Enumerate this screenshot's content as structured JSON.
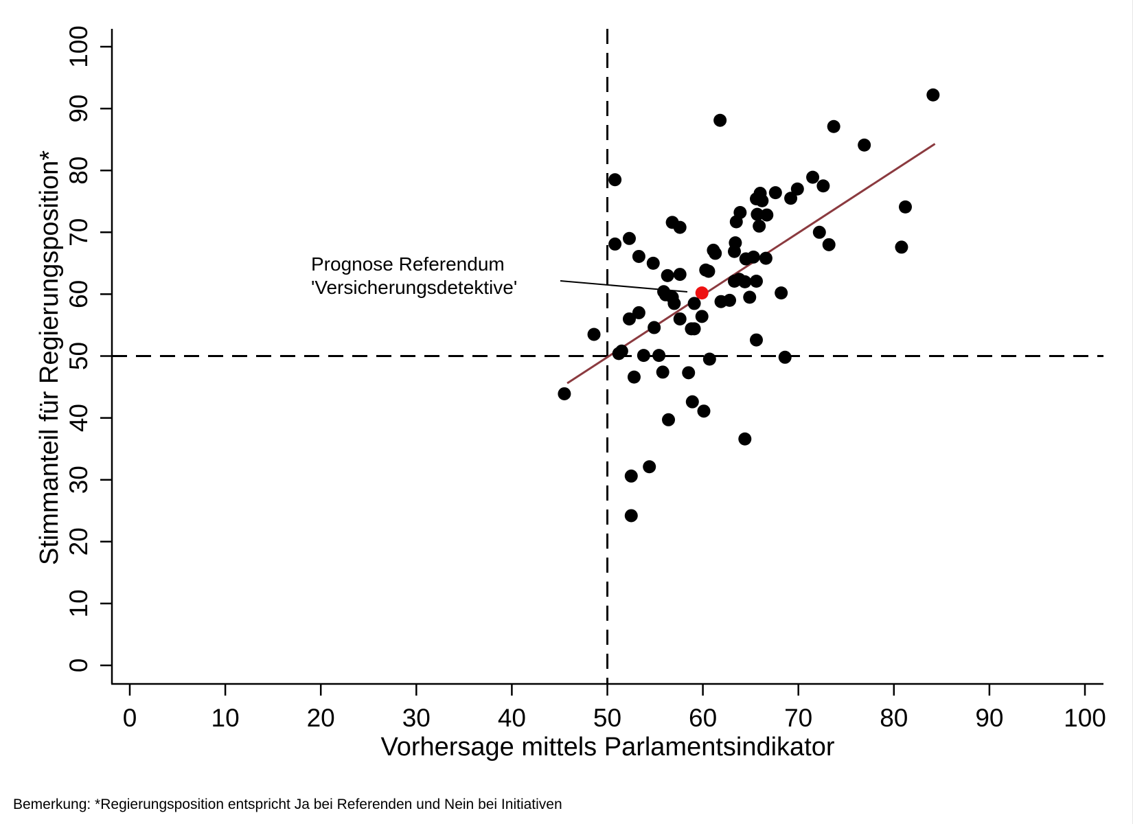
{
  "chart_data": {
    "type": "scatter",
    "xlabel": "Vorhersage mittels Parlamentsindikator",
    "ylabel": "Stimmanteil für Regierungsposition*",
    "xlim": [
      0,
      100
    ],
    "ylim": [
      0,
      100
    ],
    "xticks": [
      "0",
      "10",
      "20",
      "30",
      "40",
      "50",
      "60",
      "70",
      "80",
      "90",
      "100"
    ],
    "yticks": [
      "0",
      "10",
      "20",
      "30",
      "40",
      "50",
      "60",
      "70",
      "80",
      "90",
      "100"
    ],
    "grid": false,
    "reference_lines": {
      "x": 50,
      "y": 50,
      "style": "dashed"
    },
    "fit_line": {
      "x": [
        45.8,
        84.3
      ],
      "y": [
        45.6,
        84.3
      ],
      "color": "#8b3a3f"
    },
    "highlight": {
      "x": 59.9,
      "y": 60.2,
      "color": "#ee1111",
      "label_line1": "Prognose Referendum",
      "label_line2": "'Versicherungsdetektive'"
    },
    "point_color": "#000000",
    "points": [
      [
        45.5,
        43.9
      ],
      [
        48.6,
        53.5
      ],
      [
        50.8,
        78.5
      ],
      [
        50.8,
        68.1
      ],
      [
        51.2,
        50.4
      ],
      [
        51.5,
        50.8
      ],
      [
        52.3,
        69.0
      ],
      [
        52.3,
        56.0
      ],
      [
        52.8,
        46.6
      ],
      [
        52.5,
        30.6
      ],
      [
        52.5,
        24.2
      ],
      [
        53.3,
        66.1
      ],
      [
        53.3,
        57.0
      ],
      [
        53.8,
        50.1
      ],
      [
        54.4,
        32.1
      ],
      [
        54.8,
        65.0
      ],
      [
        54.9,
        54.6
      ],
      [
        55.4,
        50.1
      ],
      [
        55.8,
        47.4
      ],
      [
        55.9,
        60.4
      ],
      [
        56.1,
        59.9
      ],
      [
        56.3,
        63.0
      ],
      [
        56.4,
        39.7
      ],
      [
        56.8,
        71.6
      ],
      [
        56.8,
        59.5
      ],
      [
        57.0,
        58.5
      ],
      [
        57.6,
        70.8
      ],
      [
        57.6,
        63.2
      ],
      [
        57.6,
        56.0
      ],
      [
        58.5,
        47.3
      ],
      [
        58.8,
        54.4
      ],
      [
        59.1,
        54.4
      ],
      [
        58.9,
        42.6
      ],
      [
        59.1,
        58.5
      ],
      [
        59.9,
        56.4
      ],
      [
        60.1,
        41.1
      ],
      [
        60.3,
        63.9
      ],
      [
        60.6,
        63.7
      ],
      [
        60.7,
        49.5
      ],
      [
        61.1,
        67.1
      ],
      [
        61.3,
        66.6
      ],
      [
        61.8,
        88.1
      ],
      [
        61.9,
        58.8
      ],
      [
        62.8,
        59.0
      ],
      [
        63.3,
        66.9
      ],
      [
        63.4,
        68.3
      ],
      [
        63.5,
        71.7
      ],
      [
        63.3,
        62.1
      ],
      [
        63.8,
        62.4
      ],
      [
        63.9,
        73.2
      ],
      [
        64.4,
        62.0
      ],
      [
        64.4,
        36.6
      ],
      [
        64.5,
        65.7
      ],
      [
        64.9,
        59.5
      ],
      [
        65.3,
        66.0
      ],
      [
        65.6,
        62.1
      ],
      [
        65.6,
        52.6
      ],
      [
        65.6,
        75.4
      ],
      [
        65.7,
        72.9
      ],
      [
        65.9,
        71.0
      ],
      [
        66.0,
        76.3
      ],
      [
        66.2,
        75.1
      ],
      [
        66.7,
        72.8
      ],
      [
        66.6,
        65.8
      ],
      [
        67.6,
        76.4
      ],
      [
        68.2,
        60.2
      ],
      [
        68.6,
        49.8
      ],
      [
        69.2,
        75.5
      ],
      [
        69.9,
        77.0
      ],
      [
        71.5,
        78.9
      ],
      [
        72.2,
        70.0
      ],
      [
        72.6,
        77.5
      ],
      [
        73.2,
        68.0
      ],
      [
        73.7,
        87.1
      ],
      [
        76.9,
        84.1
      ],
      [
        80.8,
        67.6
      ],
      [
        81.2,
        74.1
      ],
      [
        84.1,
        92.2
      ]
    ],
    "footnote": "Bemerkung: *Regierungsposition entspricht Ja bei Referenden und Nein bei Initiativen"
  }
}
